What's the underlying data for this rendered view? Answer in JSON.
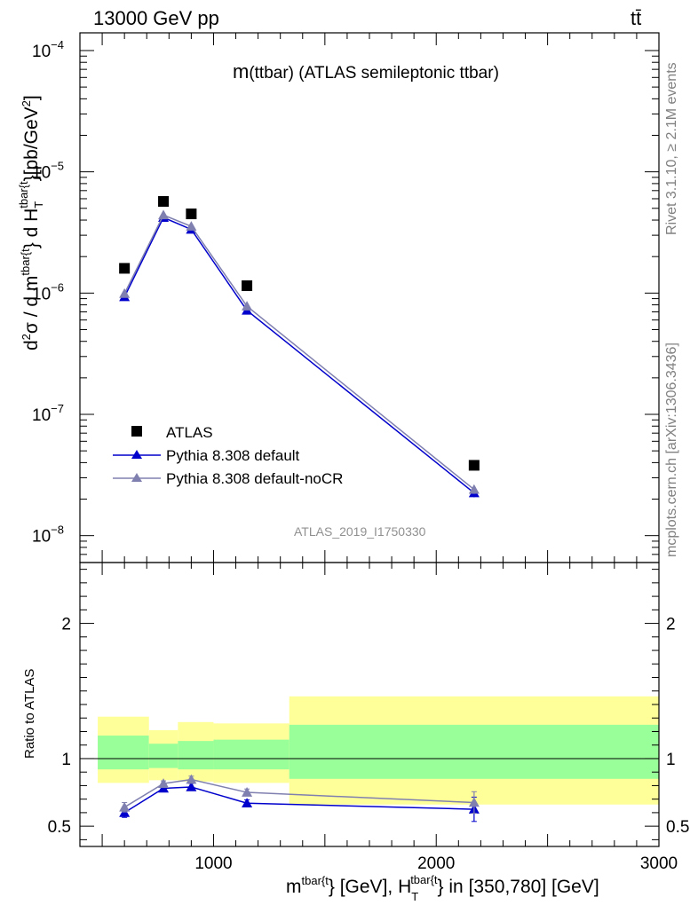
{
  "header": {
    "left": "13000 GeV pp",
    "right": "tt̄"
  },
  "side_labels": {
    "rivet": "Rivet 3.1.10, ≥ 2.1M events",
    "mcplots": "mcplots.cern.ch [arXiv:1306.3436]"
  },
  "chart_data": [
    {
      "type": "scatter",
      "panel": "main",
      "title": "m(ttbar) (ATLAS semileptonic ttbar)",
      "title_parts": {
        "m": "m",
        "rest": "(ttbar) (ATLAS semileptonic ttbar)"
      },
      "analysis_id": "ATLAS_2019_I1750330",
      "ylabel": "d²σ / d m^{tbar{t}} d H_T^{tbar{t}} [pb/GeV²]",
      "ylabel_parts": {
        "d2": "d",
        "s2": "2",
        "sigma": "σ / d m",
        "sup1": "tbar{t",
        "mid": "} d H",
        "sub": "T",
        "sup2": "tbar{t",
        "end": "}[pb/GeV",
        "sup3": "2",
        "close": "]"
      },
      "yscale": "log",
      "ylim": [
        6e-09,
        0.00014
      ],
      "xlim": [
        400,
        3000
      ],
      "y_ticks": [
        {
          "value": 1e-08,
          "label": "10",
          "exp": "−8"
        },
        {
          "value": 1e-07,
          "label": "10",
          "exp": "−7"
        },
        {
          "value": 1e-06,
          "label": "10",
          "exp": "−6"
        },
        {
          "value": 1e-05,
          "label": "10",
          "exp": "−5"
        },
        {
          "value": 0.0001,
          "label": "10",
          "exp": "−4"
        }
      ],
      "legend_position": "bottom-left",
      "x": [
        600,
        775,
        900,
        1150,
        2170
      ],
      "series": [
        {
          "name": "ATLAS",
          "color": "#000000",
          "marker": "square",
          "values": [
            1.6e-06,
            5.7e-06,
            4.5e-06,
            1.15e-06,
            3.8e-08
          ]
        },
        {
          "name": "Pythia 8.308 default",
          "color": "#0000cc",
          "marker": "triangle",
          "values": [
            9.3e-07,
            4.2e-06,
            3.35e-06,
            7.2e-07,
            2.25e-08
          ],
          "errors": [
            0.04,
            0.03,
            0.03,
            0.04,
            0.08
          ]
        },
        {
          "name": "Pythia 8.308 default-noCR",
          "color": "#8080b0",
          "marker": "triangle",
          "values": [
            9.9e-07,
            4.4e-06,
            3.55e-06,
            7.8e-07,
            2.4e-08
          ],
          "errors": [
            0.04,
            0.03,
            0.03,
            0.04,
            0.08
          ]
        }
      ]
    },
    {
      "type": "scatter",
      "panel": "ratio",
      "ylabel": "Ratio to ATLAS",
      "xlabel": "m^{tbar{t}} [GeV], H_T^{tbar{t}} in [350,780] [GeV]",
      "xlabel_parts": {
        "m": "m",
        "sup1": "tbar{t",
        "mid": "} [GeV], H",
        "sub": "T",
        "sup2": "tbar{t",
        "end": "} in [350,780] [GeV]"
      },
      "ylim": [
        0.35,
        2.45
      ],
      "xlim": [
        400,
        3000
      ],
      "y_ticks": [
        {
          "value": 0.5,
          "label": "0.5"
        },
        {
          "value": 1,
          "label": "1"
        },
        {
          "value": 2,
          "label": "2"
        }
      ],
      "x_ticks": [
        {
          "value": 1000,
          "label": "1000"
        },
        {
          "value": 2000,
          "label": "2000"
        },
        {
          "value": 3000,
          "label": "3000"
        }
      ],
      "bands": [
        {
          "x0": 480,
          "x1": 710,
          "green": [
            0.92,
            1.17
          ],
          "yellow": [
            0.82,
            1.31
          ]
        },
        {
          "x0": 710,
          "x1": 840,
          "green": [
            0.93,
            1.11
          ],
          "yellow": [
            0.84,
            1.21
          ]
        },
        {
          "x0": 840,
          "x1": 1000,
          "green": [
            0.92,
            1.13
          ],
          "yellow": [
            0.83,
            1.27
          ]
        },
        {
          "x0": 1000,
          "x1": 1340,
          "green": [
            0.92,
            1.14
          ],
          "yellow": [
            0.82,
            1.26
          ]
        },
        {
          "x0": 1340,
          "x1": 3000,
          "green": [
            0.85,
            1.25
          ],
          "yellow": [
            0.66,
            1.46
          ]
        }
      ],
      "band_colors": {
        "green": "#99ff99",
        "yellow": "#ffff99"
      },
      "x": [
        600,
        775,
        900,
        1150,
        2170
      ],
      "series": [
        {
          "name": "Pythia 8.308 default",
          "color": "#0000cc",
          "values": [
            0.6,
            0.78,
            0.79,
            0.67,
            0.625
          ],
          "errors": [
            0.035,
            0.02,
            0.025,
            0.025,
            0.09
          ]
        },
        {
          "name": "Pythia 8.308 default-noCR",
          "color": "#8080b0",
          "values": [
            0.64,
            0.815,
            0.845,
            0.75,
            0.675
          ],
          "errors": [
            0.035,
            0.02,
            0.025,
            0.025,
            0.08
          ]
        }
      ]
    }
  ]
}
